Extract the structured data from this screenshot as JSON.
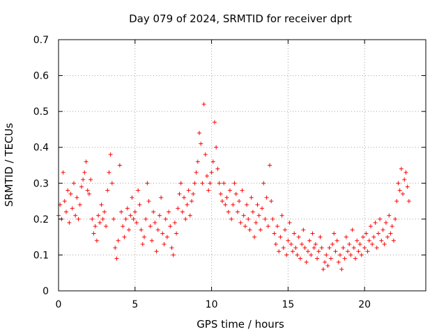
{
  "chart_data": {
    "type": "scatter",
    "title": "Day 079 of 2024, SRMTID for receiver dprt",
    "xlabel": "GPS time / hours",
    "ylabel": "SRMTID / TECUs",
    "xlim": [
      0,
      24
    ],
    "ylim": [
      0,
      0.7
    ],
    "xticks": [
      0,
      5,
      10,
      15,
      20
    ],
    "xtick_labels": [
      "0",
      "5",
      "10",
      "15",
      "20"
    ],
    "yticks": [
      0,
      0.1,
      0.2,
      0.3,
      0.4,
      0.5,
      0.6,
      0.7
    ],
    "ytick_labels": [
      "0",
      "0.1",
      "0.2",
      "0.3",
      "0.4",
      "0.5",
      "0.6",
      "0.7"
    ],
    "grid": true,
    "marker": "+",
    "color": "#ff0000",
    "series": [
      {
        "name": "SRMTID",
        "x": [
          0.0,
          0.1,
          0.2,
          0.3,
          0.4,
          0.5,
          0.6,
          0.7,
          0.8,
          0.9,
          1.0,
          1.1,
          1.2,
          1.3,
          1.4,
          1.5,
          1.6,
          1.7,
          1.8,
          1.9,
          2.0,
          2.1,
          2.2,
          2.3,
          2.4,
          2.5,
          2.6,
          2.7,
          2.8,
          2.9,
          3.0,
          3.1,
          3.2,
          3.3,
          3.4,
          3.5,
          3.6,
          3.7,
          3.8,
          3.9,
          4.0,
          4.1,
          4.2,
          4.3,
          4.4,
          4.5,
          4.6,
          4.7,
          4.8,
          4.9,
          5.0,
          5.1,
          5.2,
          5.3,
          5.4,
          5.5,
          5.6,
          5.7,
          5.8,
          5.9,
          6.0,
          6.1,
          6.2,
          6.3,
          6.4,
          6.5,
          6.6,
          6.7,
          6.8,
          6.9,
          7.0,
          7.1,
          7.2,
          7.3,
          7.4,
          7.5,
          7.6,
          7.7,
          7.8,
          7.9,
          8.0,
          8.1,
          8.2,
          8.3,
          8.4,
          8.5,
          8.6,
          8.7,
          8.8,
          8.9,
          9.0,
          9.1,
          9.2,
          9.3,
          9.4,
          9.5,
          9.6,
          9.7,
          9.8,
          9.9,
          10.0,
          10.1,
          10.2,
          10.3,
          10.4,
          10.5,
          10.6,
          10.7,
          10.8,
          10.9,
          11.0,
          11.1,
          11.2,
          11.3,
          11.4,
          11.5,
          11.6,
          11.7,
          11.8,
          11.9,
          12.0,
          12.1,
          12.2,
          12.3,
          12.4,
          12.5,
          12.6,
          12.7,
          12.8,
          12.9,
          13.0,
          13.1,
          13.2,
          13.3,
          13.4,
          13.5,
          13.6,
          13.7,
          13.8,
          13.9,
          14.0,
          14.1,
          14.2,
          14.3,
          14.4,
          14.5,
          14.6,
          14.7,
          14.8,
          14.9,
          15.0,
          15.1,
          15.2,
          15.3,
          15.4,
          15.5,
          15.6,
          15.7,
          15.8,
          15.9,
          16.0,
          16.1,
          16.2,
          16.3,
          16.4,
          16.5,
          16.6,
          16.7,
          16.8,
          16.9,
          17.0,
          17.1,
          17.2,
          17.3,
          17.4,
          17.5,
          17.6,
          17.7,
          17.8,
          17.9,
          18.0,
          18.1,
          18.2,
          18.3,
          18.4,
          18.5,
          18.6,
          18.7,
          18.8,
          18.9,
          19.0,
          19.1,
          19.2,
          19.3,
          19.4,
          19.5,
          19.6,
          19.7,
          19.8,
          19.9,
          20.0,
          20.1,
          20.2,
          20.3,
          20.4,
          20.5,
          20.6,
          20.7,
          20.8,
          20.9,
          21.0,
          21.1,
          21.2,
          21.3,
          21.4,
          21.5,
          21.6,
          21.7,
          21.8,
          21.9,
          22.0,
          22.1,
          22.2,
          22.3,
          22.4,
          22.5,
          22.6,
          22.7,
          22.8,
          22.9
        ],
        "y": [
          0.21,
          0.24,
          0.2,
          0.33,
          0.25,
          0.22,
          0.28,
          0.19,
          0.27,
          0.23,
          0.3,
          0.21,
          0.26,
          0.2,
          0.24,
          0.29,
          0.31,
          0.33,
          0.36,
          0.28,
          0.27,
          0.31,
          0.2,
          0.16,
          0.18,
          0.14,
          0.21,
          0.19,
          0.24,
          0.2,
          0.22,
          0.18,
          0.28,
          0.33,
          0.38,
          0.3,
          0.2,
          0.12,
          0.09,
          0.14,
          0.35,
          0.22,
          0.18,
          0.15,
          0.2,
          0.23,
          0.17,
          0.21,
          0.26,
          0.2,
          0.22,
          0.19,
          0.28,
          0.24,
          0.17,
          0.13,
          0.15,
          0.2,
          0.3,
          0.25,
          0.18,
          0.14,
          0.22,
          0.19,
          0.11,
          0.17,
          0.21,
          0.26,
          0.16,
          0.13,
          0.2,
          0.15,
          0.22,
          0.18,
          0.12,
          0.1,
          0.19,
          0.16,
          0.23,
          0.27,
          0.3,
          0.22,
          0.26,
          0.2,
          0.24,
          0.28,
          0.21,
          0.25,
          0.27,
          0.3,
          0.33,
          0.36,
          0.44,
          0.41,
          0.3,
          0.52,
          0.38,
          0.32,
          0.28,
          0.3,
          0.33,
          0.36,
          0.47,
          0.4,
          0.34,
          0.3,
          0.27,
          0.25,
          0.3,
          0.24,
          0.26,
          0.22,
          0.28,
          0.2,
          0.24,
          0.3,
          0.27,
          0.22,
          0.25,
          0.19,
          0.28,
          0.21,
          0.18,
          0.24,
          0.2,
          0.17,
          0.26,
          0.22,
          0.15,
          0.19,
          0.24,
          0.21,
          0.17,
          0.23,
          0.3,
          0.2,
          0.26,
          0.18,
          0.35,
          0.25,
          0.2,
          0.16,
          0.13,
          0.18,
          0.11,
          0.15,
          0.21,
          0.12,
          0.17,
          0.1,
          0.14,
          0.19,
          0.13,
          0.11,
          0.16,
          0.12,
          0.1,
          0.15,
          0.09,
          0.13,
          0.17,
          0.12,
          0.08,
          0.11,
          0.14,
          0.1,
          0.16,
          0.12,
          0.13,
          0.09,
          0.11,
          0.15,
          0.12,
          0.06,
          0.08,
          0.1,
          0.07,
          0.12,
          0.09,
          0.13,
          0.16,
          0.11,
          0.14,
          0.08,
          0.1,
          0.06,
          0.12,
          0.09,
          0.15,
          0.11,
          0.13,
          0.1,
          0.17,
          0.12,
          0.09,
          0.14,
          0.11,
          0.13,
          0.1,
          0.15,
          0.12,
          0.16,
          0.11,
          0.14,
          0.18,
          0.13,
          0.15,
          0.19,
          0.12,
          0.16,
          0.2,
          0.14,
          0.17,
          0.13,
          0.19,
          0.15,
          0.21,
          0.16,
          0.18,
          0.14,
          0.2,
          0.25,
          0.3,
          0.28,
          0.34,
          0.27,
          0.31,
          0.33,
          0.29,
          0.25
        ]
      }
    ]
  }
}
